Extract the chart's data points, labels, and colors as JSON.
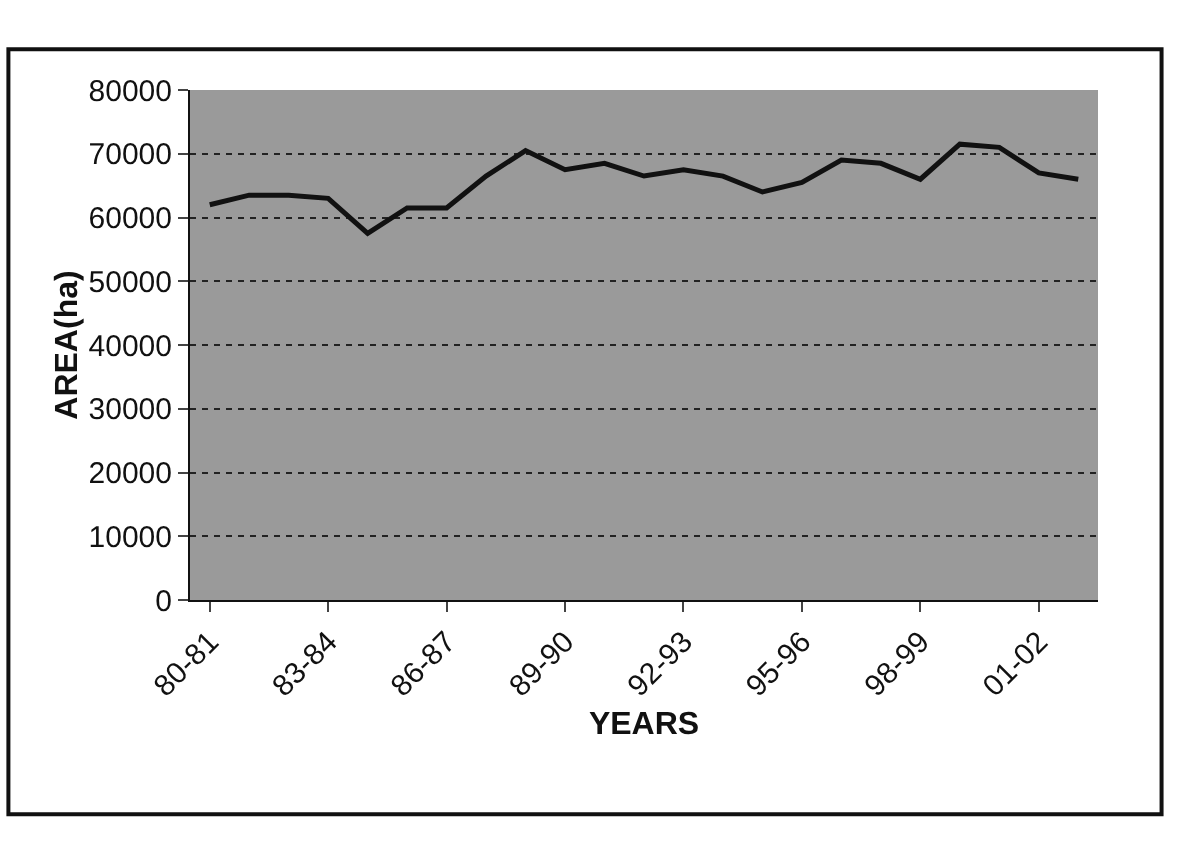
{
  "chart_data": {
    "type": "line",
    "xlabel": "YEARS",
    "ylabel": "AREA(ha)",
    "categories": [
      "80-81",
      null,
      null,
      "83-84",
      null,
      null,
      "86-87",
      null,
      null,
      "89-90",
      null,
      null,
      "92-93",
      null,
      null,
      "95-96",
      null,
      null,
      "98-99",
      null,
      null,
      "01-02",
      null
    ],
    "series": [
      {
        "color": "#111111",
        "values": [
          62000,
          63500,
          63500,
          63000,
          57500,
          61500,
          61500,
          66500,
          70500,
          67500,
          68500,
          66500,
          67500,
          66500,
          64000,
          65500,
          69000,
          68500,
          66000,
          71500,
          71000,
          67000,
          66000
        ]
      }
    ],
    "ylim": [
      0,
      80000
    ],
    "yticks": [
      0,
      10000,
      20000,
      30000,
      40000,
      50000,
      60000,
      70000,
      80000
    ],
    "grid": "y",
    "marker": "none",
    "line_style": "solid"
  }
}
